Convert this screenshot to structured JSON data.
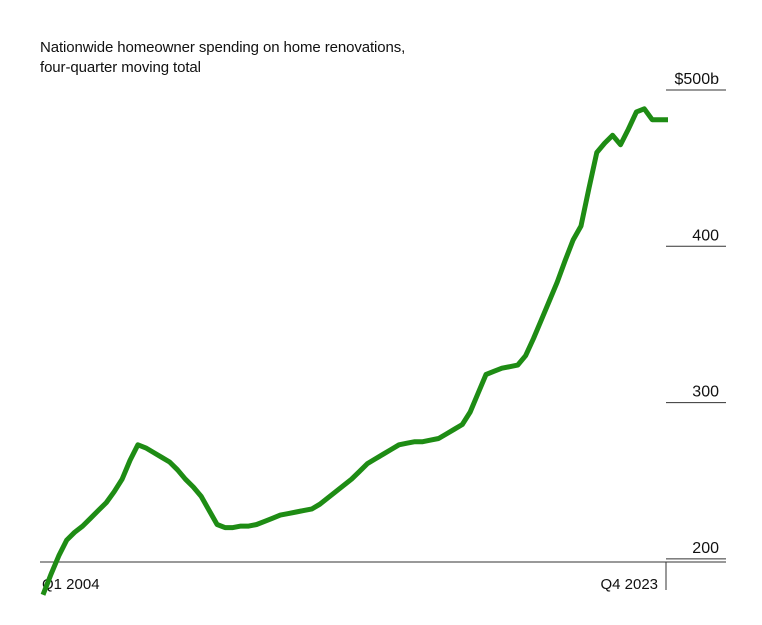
{
  "chart_data": {
    "type": "line",
    "title": "Nationwide homeowner spending on home renovations,",
    "subtitle": "four-quarter moving total",
    "x_start_label": "Q1 2004",
    "x_end_label": "Q4 2023",
    "y_ticks": [
      {
        "value": 500,
        "label": "$500b"
      },
      {
        "value": 400,
        "label": "400"
      },
      {
        "value": 300,
        "label": "300"
      },
      {
        "value": 200,
        "label": "200"
      }
    ],
    "ylim": [
      175,
      510
    ],
    "grid": false,
    "line_color": "#1e8c14",
    "series": [
      {
        "x": [
          0,
          1,
          2,
          3,
          4,
          5,
          6,
          7,
          8,
          9,
          10,
          11,
          12,
          13,
          14,
          15,
          16,
          17,
          18,
          19,
          20,
          21,
          22,
          23,
          24,
          25,
          26,
          27,
          28,
          29,
          30,
          31,
          32,
          33,
          34,
          35,
          36,
          37,
          38,
          39,
          40,
          41,
          42,
          43,
          44,
          45,
          46,
          47,
          48,
          49,
          50,
          51,
          52,
          53,
          54,
          55,
          56,
          57,
          58,
          59,
          60,
          61,
          62,
          63,
          64,
          65,
          66,
          67,
          68,
          69,
          70,
          71,
          72,
          73,
          74,
          75,
          76,
          77,
          78,
          79
        ],
        "values": [
          177,
          190,
          202,
          212,
          217,
          221,
          226,
          231,
          236,
          243,
          251,
          263,
          273,
          271,
          268,
          265,
          262,
          257,
          251,
          246,
          240,
          231,
          222,
          220,
          220,
          221,
          221,
          222,
          224,
          226,
          228,
          229,
          230,
          231,
          232,
          235,
          239,
          243,
          247,
          251,
          256,
          261,
          264,
          267,
          270,
          273,
          274,
          275,
          275,
          276,
          277,
          280,
          283,
          286,
          294,
          306,
          318,
          320,
          322,
          323,
          324,
          330,
          341,
          353,
          365,
          377,
          391,
          404,
          413,
          437,
          460,
          466,
          471,
          465,
          475,
          486,
          488,
          481,
          481,
          481
        ]
      }
    ]
  }
}
